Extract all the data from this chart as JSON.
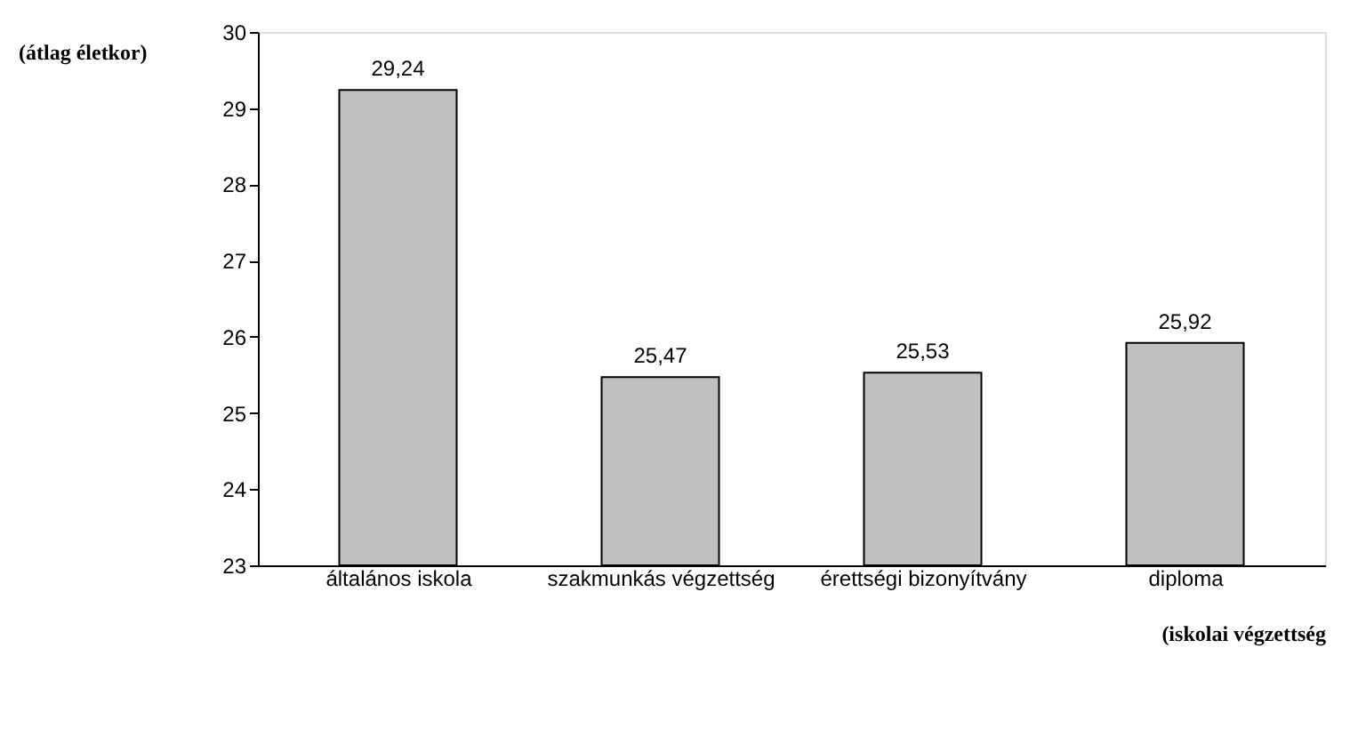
{
  "chart_data": {
    "type": "bar",
    "xlabel": "(iskolai végzettség",
    "ylabel": "(átlag életkor)",
    "categories": [
      "általános iskola",
      "szakmunkás végzettség",
      "érettségi bizonyítvány",
      "diploma"
    ],
    "values": [
      29.24,
      25.47,
      25.53,
      25.92
    ],
    "value_labels": [
      "29,24",
      "25,47",
      "25,53",
      "25,92"
    ],
    "color": "#c0c0c0",
    "ylim": [
      23,
      30
    ],
    "yticks": [
      23,
      24,
      25,
      26,
      27,
      28,
      29,
      30
    ],
    "grid": false
  }
}
